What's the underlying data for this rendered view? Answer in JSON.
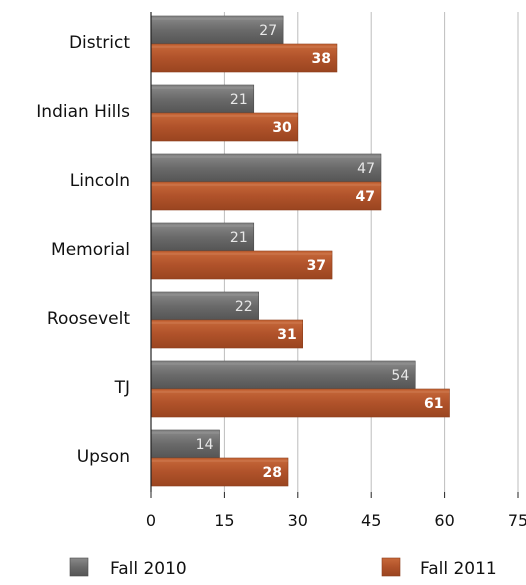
{
  "chart_data": {
    "type": "bar",
    "orientation": "horizontal",
    "categories": [
      "District",
      "Indian Hills",
      "Lincoln",
      "Memorial",
      "Roosevelt",
      "TJ",
      "Upson"
    ],
    "series": [
      {
        "name": "Fall 2010",
        "values": [
          27,
          21,
          47,
          21,
          22,
          54,
          14
        ],
        "color": "#6e6e6e"
      },
      {
        "name": "Fall 2011",
        "values": [
          38,
          30,
          47,
          37,
          31,
          61,
          28
        ],
        "color": "#b5552a"
      }
    ],
    "xlim": [
      0,
      75
    ],
    "xticks": [
      0,
      15,
      30,
      45,
      60,
      75
    ],
    "grid": true,
    "legend_position": "bottom"
  }
}
